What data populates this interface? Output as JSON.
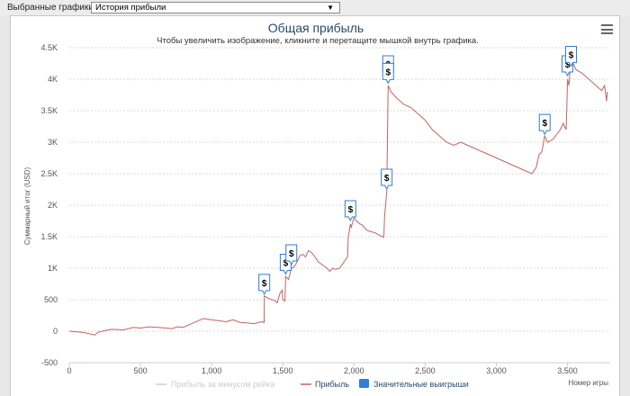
{
  "toolbar": {
    "label": "Выбранные графики:",
    "selected": "История прибыли",
    "arrow_icon": "triangle-down-icon"
  },
  "chart_data": {
    "type": "line",
    "title": "Общая прибыль",
    "subtitle": "Чтобы увеличить изображение, кликните и перетащите мышкой внутрь графика.",
    "xlabel": "Номер игры",
    "ylabel": "Суммарный итог (USD)",
    "xlim": [
      0,
      3800
    ],
    "ylim": [
      -500,
      4500
    ],
    "x_ticks": [
      0,
      500,
      1000,
      1500,
      2000,
      2500,
      3000,
      3500
    ],
    "x_tick_labels": [
      "0",
      "500",
      "1,000",
      "1,500",
      "2,000",
      "2,500",
      "3,000",
      "3,500"
    ],
    "y_ticks": [
      -500,
      0,
      500,
      1000,
      1500,
      2000,
      2500,
      3000,
      3500,
      4000,
      4500
    ],
    "y_tick_labels": [
      "-500",
      "0",
      "500",
      "1K",
      "1.5K",
      "2K",
      "2.5K",
      "3K",
      "3.5K",
      "4K",
      "4.5K"
    ],
    "grid": true,
    "legend_position": "bottom-center",
    "series": [
      {
        "name": "Прибыль за минусом рейка",
        "color": "#cccccc",
        "visible": false,
        "points": []
      },
      {
        "name": "Прибыль",
        "color": "#c46262",
        "points": [
          [
            0,
            0
          ],
          [
            100,
            -20
          ],
          [
            180,
            -60
          ],
          [
            200,
            -20
          ],
          [
            250,
            10
          ],
          [
            300,
            30
          ],
          [
            380,
            20
          ],
          [
            450,
            60
          ],
          [
            500,
            50
          ],
          [
            560,
            70
          ],
          [
            620,
            60
          ],
          [
            680,
            50
          ],
          [
            720,
            40
          ],
          [
            760,
            70
          ],
          [
            800,
            60
          ],
          [
            850,
            110
          ],
          [
            900,
            160
          ],
          [
            940,
            200
          ],
          [
            1000,
            180
          ],
          [
            1040,
            170
          ],
          [
            1100,
            150
          ],
          [
            1150,
            180
          ],
          [
            1200,
            140
          ],
          [
            1250,
            130
          ],
          [
            1300,
            120
          ],
          [
            1350,
            150
          ],
          [
            1369,
            140
          ],
          [
            1370,
            560
          ],
          [
            1400,
            520
          ],
          [
            1450,
            480
          ],
          [
            1460,
            450
          ],
          [
            1480,
            600
          ],
          [
            1495,
            650
          ],
          [
            1500,
            500
          ],
          [
            1515,
            480
          ],
          [
            1520,
            870
          ],
          [
            1540,
            820
          ],
          [
            1560,
            1000
          ],
          [
            1580,
            1020
          ],
          [
            1600,
            1100
          ],
          [
            1620,
            1200
          ],
          [
            1640,
            1220
          ],
          [
            1660,
            1180
          ],
          [
            1680,
            1280
          ],
          [
            1700,
            1250
          ],
          [
            1720,
            1200
          ],
          [
            1750,
            1100
          ],
          [
            1780,
            1050
          ],
          [
            1810,
            1000
          ],
          [
            1830,
            950
          ],
          [
            1850,
            1000
          ],
          [
            1870,
            980
          ],
          [
            1900,
            1000
          ],
          [
            1930,
            1100
          ],
          [
            1955,
            1180
          ],
          [
            1960,
            1500
          ],
          [
            1975,
            1700
          ],
          [
            1980,
            1650
          ],
          [
            2000,
            1800
          ],
          [
            2030,
            1720
          ],
          [
            2060,
            1680
          ],
          [
            2090,
            1600
          ],
          [
            2120,
            1580
          ],
          [
            2150,
            1560
          ],
          [
            2180,
            1520
          ],
          [
            2210,
            1490
          ],
          [
            2215,
            1820
          ],
          [
            2230,
            2200
          ],
          [
            2240,
            3900
          ],
          [
            2260,
            3800
          ],
          [
            2300,
            3700
          ],
          [
            2350,
            3600
          ],
          [
            2400,
            3550
          ],
          [
            2450,
            3450
          ],
          [
            2500,
            3350
          ],
          [
            2550,
            3200
          ],
          [
            2600,
            3100
          ],
          [
            2650,
            3000
          ],
          [
            2700,
            2950
          ],
          [
            2750,
            3000
          ],
          [
            2800,
            2950
          ],
          [
            2850,
            2900
          ],
          [
            2900,
            2850
          ],
          [
            2950,
            2800
          ],
          [
            3000,
            2750
          ],
          [
            3050,
            2700
          ],
          [
            3100,
            2650
          ],
          [
            3150,
            2600
          ],
          [
            3200,
            2550
          ],
          [
            3250,
            2500
          ],
          [
            3280,
            2600
          ],
          [
            3300,
            2800
          ],
          [
            3320,
            2850
          ],
          [
            3340,
            3100
          ],
          [
            3360,
            3000
          ],
          [
            3400,
            3050
          ],
          [
            3450,
            3200
          ],
          [
            3470,
            3300
          ],
          [
            3480,
            3250
          ],
          [
            3490,
            3200
          ],
          [
            3495,
            3550
          ],
          [
            3500,
            4000
          ],
          [
            3510,
            3900
          ],
          [
            3520,
            4200
          ],
          [
            3540,
            4250
          ],
          [
            3560,
            4150
          ],
          [
            3600,
            4100
          ],
          [
            3650,
            4000
          ],
          [
            3700,
            3900
          ],
          [
            3740,
            3820
          ],
          [
            3760,
            3900
          ],
          [
            3775,
            3650
          ],
          [
            3780,
            3800
          ]
        ]
      },
      {
        "name": "Значительные выигрыши",
        "color": "#2f7ed8",
        "markers": [
          [
            1370,
            530
          ],
          [
            1520,
            850
          ],
          [
            1560,
            1000
          ],
          [
            1975,
            1700
          ],
          [
            2230,
            2200
          ],
          [
            2240,
            4000
          ],
          [
            2240,
            3880
          ],
          [
            3340,
            3070
          ],
          [
            3500,
            4000
          ],
          [
            3525,
            4150
          ]
        ],
        "marker_label": "$"
      }
    ]
  }
}
